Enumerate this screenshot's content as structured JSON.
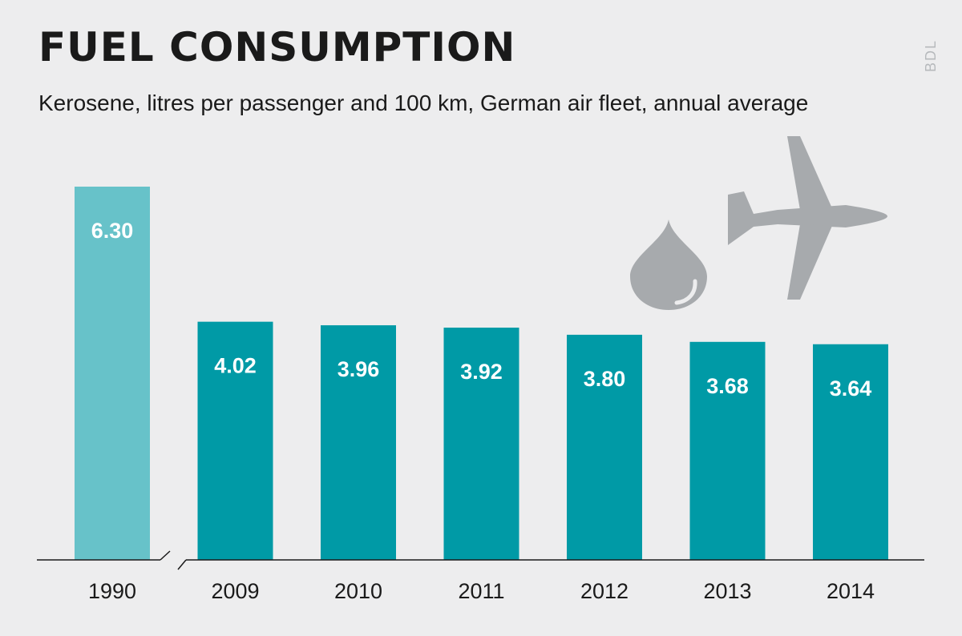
{
  "header": {
    "title": "FUEL CONSUMPTION",
    "subtitle": "Kerosene, litres per passenger and 100 km, German air fleet, annual average",
    "source": "BDL"
  },
  "icons": [
    "fuel-drop-icon",
    "airplane-icon"
  ],
  "colors": {
    "background": "#ededee",
    "bar_highlight": "#67c2c9",
    "bar_main": "#009aa6",
    "icon": "#a7aaad",
    "axis": "#1a1a1a"
  },
  "chart_data": {
    "type": "bar",
    "categories": [
      "1990",
      "2009",
      "2010",
      "2011",
      "2012",
      "2013",
      "2014"
    ],
    "values": [
      6.3,
      4.02,
      3.96,
      3.92,
      3.8,
      3.68,
      3.64
    ],
    "value_labels": [
      "6.30",
      "4.02",
      "3.96",
      "3.92",
      "3.80",
      "3.68",
      "3.64"
    ],
    "title": "FUEL CONSUMPTION",
    "subtitle": "Kerosene, litres per passenger and 100 km, German air fleet, annual average",
    "xlabel": "",
    "ylabel": "",
    "ylim": [
      0,
      6.3
    ],
    "grid": false,
    "axis_break_after": "1990",
    "highlighted_category": "1990"
  }
}
